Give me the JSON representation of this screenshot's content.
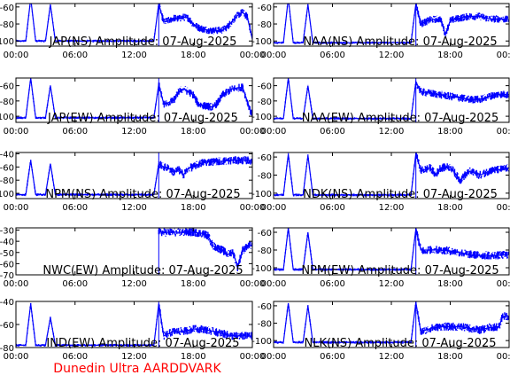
{
  "credit": "Dunedin Ultra AARDDVARK",
  "colors": {
    "trace": "#0000ff",
    "axis": "#000000",
    "credit": "#ff0000"
  },
  "chart_data": [
    {
      "type": "line",
      "title": "JAP(NS) Amplitude: 07-Aug-2025",
      "xlabel": "",
      "ylabel": "",
      "x_unit": "hours UT",
      "xticks": [
        "00:00",
        "06:00",
        "12:00",
        "18:00",
        "00:00"
      ],
      "yticks": [
        -100,
        -80,
        -60
      ],
      "ylim": [
        -106,
        -56
      ],
      "grid": false,
      "series": [
        {
          "x": [
            0,
            0.5,
            1,
            1.5,
            2,
            2.5,
            3,
            3.5,
            4,
            5,
            6,
            8,
            10,
            12,
            13,
            14,
            14.5,
            15,
            15.5,
            16,
            16.5,
            17,
            17.5,
            18,
            18.5,
            19,
            19.5,
            20,
            21,
            21.5,
            22,
            22.5,
            23,
            23.5,
            24
          ],
          "y": [
            -100,
            -100,
            -100,
            -50,
            -100,
            -100,
            -100,
            -57,
            -100,
            -100,
            -100,
            -100,
            -100,
            -100,
            -100,
            -100,
            -56,
            -78,
            -76,
            -73,
            -74,
            -72,
            -73,
            -80,
            -84,
            -86,
            -87,
            -88,
            -87,
            -83,
            -76,
            -70,
            -66,
            -72,
            -98
          ]
        }
      ]
    },
    {
      "type": "line",
      "title": "NAA(NS) Amplitude: 07-Aug-2025",
      "xlabel": "",
      "ylabel": "",
      "x_unit": "hours UT",
      "xticks": [
        "00:00",
        "06:00",
        "12:00",
        "18:00",
        "00:00"
      ],
      "yticks": [
        -100,
        -80,
        -60
      ],
      "ylim": [
        -106,
        -56
      ],
      "grid": false,
      "series": [
        {
          "x": [
            0,
            0.5,
            1,
            1.5,
            2,
            2.5,
            3,
            3.5,
            4,
            6,
            8,
            10,
            12,
            14,
            14.5,
            15,
            16,
            17,
            17.5,
            18,
            19,
            20,
            21,
            22,
            23,
            24
          ],
          "y": [
            -102,
            -102,
            -102,
            -50,
            -102,
            -102,
            -102,
            -57,
            -102,
            -102,
            -102,
            -102,
            -102,
            -102,
            -56,
            -80,
            -75,
            -74,
            -92,
            -76,
            -73,
            -71,
            -71,
            -74,
            -74,
            -75
          ]
        }
      ]
    },
    {
      "type": "line",
      "title": "JAP(EW) Amplitude: 07-Aug-2025",
      "xlabel": "",
      "ylabel": "",
      "x_unit": "hours UT",
      "xticks": [
        "00:00",
        "06:00",
        "12:00",
        "18:00",
        "00:00"
      ],
      "yticks": [
        -100,
        -80,
        -60
      ],
      "ylim": [
        -108,
        -50
      ],
      "grid": false,
      "series": [
        {
          "x": [
            0,
            0.5,
            1,
            1.5,
            2,
            2.5,
            3,
            3.5,
            4,
            6,
            8,
            10,
            12,
            14,
            14.5,
            15,
            16,
            16.5,
            17,
            18,
            18.5,
            19,
            20,
            20.5,
            21,
            22,
            23,
            24
          ],
          "y": [
            -102,
            -102,
            -102,
            -50,
            -102,
            -102,
            -102,
            -60,
            -102,
            -102,
            -102,
            -102,
            -102,
            -102,
            -58,
            -84,
            -80,
            -68,
            -64,
            -72,
            -84,
            -86,
            -88,
            -82,
            -72,
            -64,
            -62,
            -100
          ]
        }
      ]
    },
    {
      "type": "line",
      "title": "NAA(EW) Amplitude: 07-Aug-2025",
      "xlabel": "",
      "ylabel": "",
      "x_unit": "hours UT",
      "xticks": [
        "00:00",
        "06:00",
        "12:00",
        "18:00",
        "00:00"
      ],
      "yticks": [
        -100,
        -80,
        -60
      ],
      "ylim": [
        -108,
        -50
      ],
      "grid": false,
      "series": [
        {
          "x": [
            0,
            0.5,
            1,
            1.5,
            2,
            2.5,
            3,
            3.5,
            4,
            6,
            8,
            10,
            12,
            14,
            14.5,
            15,
            16,
            17,
            18,
            19,
            20,
            21,
            22,
            23,
            24
          ],
          "y": [
            -103,
            -103,
            -103,
            -50,
            -103,
            -103,
            -103,
            -60,
            -103,
            -103,
            -103,
            -103,
            -103,
            -103,
            -55,
            -68,
            -70,
            -72,
            -74,
            -76,
            -78,
            -78,
            -74,
            -71,
            -72
          ]
        }
      ]
    },
    {
      "type": "line",
      "title": "NPM(NS) Amplitude: 07-Aug-2025",
      "xlabel": "",
      "ylabel": "",
      "x_unit": "hours UT",
      "xticks": [
        "00:00",
        "06:00",
        "12:00",
        "18:00",
        "00:00"
      ],
      "yticks": [
        -100,
        -80,
        -60,
        -40
      ],
      "ylim": [
        -108,
        -38
      ],
      "grid": false,
      "series": [
        {
          "x": [
            0,
            0.5,
            1,
            1.5,
            2,
            2.5,
            3,
            3.5,
            4,
            6,
            8,
            10,
            12,
            14,
            14.5,
            15,
            15.5,
            16,
            16.5,
            17,
            17.5,
            18,
            18.5,
            19,
            20,
            21,
            22,
            23,
            24
          ],
          "y": [
            -102,
            -102,
            -102,
            -50,
            -102,
            -102,
            -102,
            -55,
            -102,
            -102,
            -102,
            -102,
            -102,
            -102,
            -55,
            -60,
            -62,
            -68,
            -64,
            -72,
            -62,
            -60,
            -56,
            -53,
            -52,
            -51,
            -50,
            -50,
            -50
          ]
        }
      ]
    },
    {
      "type": "line",
      "title": "NDK(NS) Amplitude: 07-Aug-2025",
      "xlabel": "",
      "ylabel": "",
      "x_unit": "hours UT",
      "xticks": [
        "00:00",
        "06:00",
        "12:00",
        "18:00",
        "00:00"
      ],
      "yticks": [
        -100,
        -80,
        -60
      ],
      "ylim": [
        -106,
        -55
      ],
      "grid": false,
      "series": [
        {
          "x": [
            0,
            0.5,
            1,
            1.5,
            2,
            2.5,
            3,
            3.5,
            4,
            6,
            8,
            10,
            12,
            14,
            14.5,
            15,
            16,
            16.5,
            17,
            18,
            18.5,
            19,
            19.5,
            20,
            21,
            21.5,
            22,
            23,
            24
          ],
          "y": [
            -102,
            -102,
            -102,
            -57,
            -102,
            -102,
            -102,
            -58,
            -102,
            -102,
            -102,
            -102,
            -102,
            -102,
            -56,
            -75,
            -72,
            -80,
            -72,
            -71,
            -78,
            -86,
            -80,
            -76,
            -80,
            -78,
            -75,
            -74,
            -72
          ]
        }
      ]
    },
    {
      "type": "line",
      "title": "NWC(EW) Amplitude: 07-Aug-2025",
      "xlabel": "",
      "ylabel": "",
      "x_unit": "hours UT",
      "xticks": [
        "00:00",
        "06:00",
        "12:00",
        "18:00",
        "00:00"
      ],
      "yticks": [
        -70,
        -60,
        -50,
        -40,
        -30
      ],
      "ylim": [
        -70,
        -28
      ],
      "grid": false,
      "series": [
        {
          "x": [
            14.5,
            15,
            16,
            17,
            18,
            19,
            19.5,
            20,
            20.5,
            21,
            21.5,
            22,
            22.5,
            23,
            23.5,
            24
          ],
          "y": [
            -32,
            -32,
            -32,
            -32,
            -32,
            -33,
            -35,
            -44,
            -46,
            -48,
            -52,
            -49,
            -63,
            -48,
            -45,
            -43
          ]
        }
      ]
    },
    {
      "type": "line",
      "title": "NPM(EW) Amplitude: 07-Aug-2025",
      "xlabel": "",
      "ylabel": "",
      "x_unit": "hours UT",
      "xticks": [
        "00:00",
        "06:00",
        "12:00",
        "18:00",
        "00:00"
      ],
      "yticks": [
        -100,
        -80,
        -60
      ],
      "ylim": [
        -108,
        -55
      ],
      "grid": false,
      "series": [
        {
          "x": [
            0,
            0.5,
            1,
            1.5,
            2,
            2.5,
            3,
            3.5,
            4,
            6,
            8,
            10,
            12,
            14,
            14.5,
            15,
            16,
            17,
            18,
            19,
            20,
            21,
            22,
            23,
            24
          ],
          "y": [
            -102,
            -102,
            -102,
            -55,
            -102,
            -102,
            -102,
            -60,
            -102,
            -102,
            -102,
            -102,
            -102,
            -102,
            -56,
            -80,
            -80,
            -80,
            -81,
            -83,
            -85,
            -86,
            -86,
            -86,
            -85
          ]
        }
      ]
    },
    {
      "type": "line",
      "title": "IND(EW) Amplitude: 07-Aug-2025",
      "xlabel": "",
      "ylabel": "",
      "x_unit": "hours UT",
      "xticks": [
        "00:00",
        "06:00",
        "12:00",
        "18:00",
        "00:00"
      ],
      "yticks": [
        -80,
        -60,
        -40
      ],
      "ylim": [
        -80,
        -40
      ],
      "grid": false,
      "series": [
        {
          "x": [
            0,
            0.5,
            1,
            1.5,
            2,
            2.5,
            3,
            3.5,
            4,
            6,
            8,
            10,
            12,
            14,
            14.5,
            15,
            16,
            17,
            18,
            19,
            20,
            21,
            22,
            23,
            24
          ],
          "y": [
            -78,
            -78,
            -78,
            -42,
            -78,
            -78,
            -78,
            -54,
            -78,
            -78,
            -78,
            -78,
            -78,
            -78,
            -42,
            -70,
            -66,
            -66,
            -64,
            -64,
            -66,
            -68,
            -70,
            -70,
            -70
          ]
        }
      ]
    },
    {
      "type": "line",
      "title": "NLK(NS) Amplitude: 07-Aug-2025",
      "xlabel": "",
      "ylabel": "",
      "x_unit": "hours UT",
      "xticks": [
        "00:00",
        "06:00",
        "12:00",
        "18:00",
        "00:00"
      ],
      "yticks": [
        -100,
        -80,
        -60
      ],
      "ylim": [
        -108,
        -55
      ],
      "grid": false,
      "series": [
        {
          "x": [
            0,
            0.5,
            1,
            1.5,
            2,
            2.5,
            3,
            3.5,
            4,
            6,
            8,
            10,
            12,
            14,
            14.5,
            15,
            16,
            17,
            18,
            19,
            20,
            21,
            22,
            23,
            23.3,
            23.5,
            24
          ],
          "y": [
            -102,
            -102,
            -102,
            -57,
            -102,
            -102,
            -102,
            -60,
            -102,
            -102,
            -102,
            -102,
            -102,
            -102,
            -56,
            -90,
            -86,
            -84,
            -84,
            -84,
            -86,
            -88,
            -85,
            -84,
            -72,
            -72,
            -72
          ]
        }
      ]
    }
  ]
}
